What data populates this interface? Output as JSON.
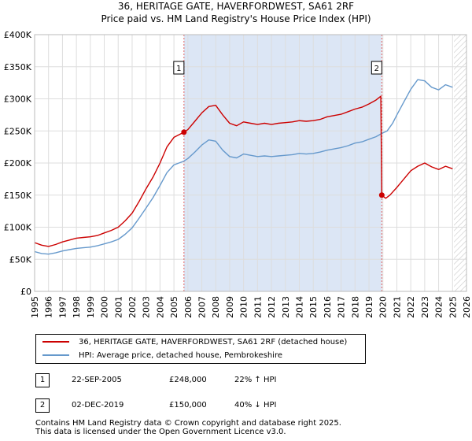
{
  "title_line1": "36, HERITAGE GATE, HAVERFORDWEST, SA61 2RF",
  "title_line2": "Price paid vs. HM Land Registry's House Price Index (HPI)",
  "legend": {
    "property_label": "36, HERITAGE GATE, HAVERFORDWEST, SA61 2RF (detached house)",
    "hpi_label": "HPI: Average price, detached house, Pembrokeshire"
  },
  "transactions": [
    {
      "num": "1",
      "date": "22-SEP-2005",
      "price": "£248,000",
      "hpi_change": "22% ↑ HPI"
    },
    {
      "num": "2",
      "date": "02-DEC-2019",
      "price": "£150,000",
      "hpi_change": "40% ↓ HPI"
    }
  ],
  "footer_line1": "Contains HM Land Registry data © Crown copyright and database right 2025.",
  "footer_line2": "This data is licensed under the Open Government Licence v3.0.",
  "colors": {
    "property": "#cc0000",
    "hpi": "#6699cc",
    "sale_window": "#dce6f5",
    "grid": "#dddddd",
    "marker_line": "#e06060"
  },
  "chart_data": {
    "type": "line",
    "title": "36, HERITAGE GATE, HAVERFORDWEST, SA61 2RF — Price paid vs. HM Land Registry's House Price Index (HPI)",
    "xlabel": "",
    "ylabel": "",
    "xlim": [
      1995,
      2026
    ],
    "ylim": [
      0,
      400000
    ],
    "grid": true,
    "legend_position": "below",
    "x_ticks": [
      1995,
      1996,
      1997,
      1998,
      1999,
      2000,
      2001,
      2002,
      2003,
      2004,
      2005,
      2006,
      2007,
      2008,
      2009,
      2010,
      2011,
      2012,
      2013,
      2014,
      2015,
      2016,
      2017,
      2018,
      2019,
      2020,
      2021,
      2022,
      2023,
      2024,
      2025,
      2026
    ],
    "y_ticks": [
      0,
      50000,
      100000,
      150000,
      200000,
      250000,
      300000,
      350000,
      400000
    ],
    "y_tick_labels": [
      "£0",
      "£50K",
      "£100K",
      "£150K",
      "£200K",
      "£250K",
      "£300K",
      "£350K",
      "£400K"
    ],
    "shaded_periods": [
      [
        2005.72,
        2019.92
      ]
    ],
    "hatched_from": 2025.1,
    "series": [
      {
        "name": "36, HERITAGE GATE, HAVERFORDWEST, SA61 2RF (detached house)",
        "points": [
          [
            1995.0,
            76000
          ],
          [
            1995.5,
            72000
          ],
          [
            1996.0,
            70000
          ],
          [
            1996.5,
            73000
          ],
          [
            1997.0,
            77000
          ],
          [
            1997.5,
            80000
          ],
          [
            1998.0,
            83000
          ],
          [
            1998.5,
            84000
          ],
          [
            1999.0,
            85000
          ],
          [
            1999.5,
            87000
          ],
          [
            2000.0,
            91000
          ],
          [
            2000.5,
            95000
          ],
          [
            2001.0,
            100000
          ],
          [
            2001.5,
            110000
          ],
          [
            2002.0,
            122000
          ],
          [
            2002.5,
            140000
          ],
          [
            2003.0,
            160000
          ],
          [
            2003.5,
            178000
          ],
          [
            2004.0,
            200000
          ],
          [
            2004.5,
            225000
          ],
          [
            2005.0,
            240000
          ],
          [
            2005.72,
            248000
          ],
          [
            2006.0,
            252000
          ],
          [
            2006.5,
            265000
          ],
          [
            2007.0,
            278000
          ],
          [
            2007.5,
            288000
          ],
          [
            2008.0,
            290000
          ],
          [
            2008.5,
            275000
          ],
          [
            2009.0,
            262000
          ],
          [
            2009.5,
            258000
          ],
          [
            2010.0,
            264000
          ],
          [
            2010.5,
            262000
          ],
          [
            2011.0,
            260000
          ],
          [
            2011.5,
            262000
          ],
          [
            2012.0,
            260000
          ],
          [
            2012.5,
            262000
          ],
          [
            2013.0,
            263000
          ],
          [
            2013.5,
            264000
          ],
          [
            2014.0,
            266000
          ],
          [
            2014.5,
            265000
          ],
          [
            2015.0,
            266000
          ],
          [
            2015.5,
            268000
          ],
          [
            2016.0,
            272000
          ],
          [
            2016.5,
            274000
          ],
          [
            2017.0,
            276000
          ],
          [
            2017.5,
            280000
          ],
          [
            2018.0,
            284000
          ],
          [
            2018.5,
            287000
          ],
          [
            2019.0,
            292000
          ],
          [
            2019.5,
            298000
          ],
          [
            2019.85,
            304000
          ],
          [
            2019.92,
            150000
          ],
          [
            2020.2,
            145000
          ],
          [
            2020.5,
            150000
          ],
          [
            2021.0,
            162000
          ],
          [
            2021.5,
            175000
          ],
          [
            2022.0,
            188000
          ],
          [
            2022.5,
            195000
          ],
          [
            2023.0,
            200000
          ],
          [
            2023.5,
            194000
          ],
          [
            2024.0,
            190000
          ],
          [
            2024.5,
            195000
          ],
          [
            2025.0,
            191000
          ]
        ]
      },
      {
        "name": "HPI: Average price, detached house, Pembrokeshire",
        "points": [
          [
            1995.0,
            62000
          ],
          [
            1995.5,
            59000
          ],
          [
            1996.0,
            58000
          ],
          [
            1996.5,
            60000
          ],
          [
            1997.0,
            63000
          ],
          [
            1997.5,
            65000
          ],
          [
            1998.0,
            67000
          ],
          [
            1998.5,
            68000
          ],
          [
            1999.0,
            69000
          ],
          [
            1999.5,
            71000
          ],
          [
            2000.0,
            74000
          ],
          [
            2000.5,
            77000
          ],
          [
            2001.0,
            81000
          ],
          [
            2001.5,
            89000
          ],
          [
            2002.0,
            99000
          ],
          [
            2002.5,
            114000
          ],
          [
            2003.0,
            130000
          ],
          [
            2003.5,
            146000
          ],
          [
            2004.0,
            165000
          ],
          [
            2004.5,
            185000
          ],
          [
            2005.0,
            197000
          ],
          [
            2005.72,
            203000
          ],
          [
            2006.0,
            207000
          ],
          [
            2006.5,
            217000
          ],
          [
            2007.0,
            228000
          ],
          [
            2007.5,
            236000
          ],
          [
            2008.0,
            234000
          ],
          [
            2008.5,
            220000
          ],
          [
            2009.0,
            210000
          ],
          [
            2009.5,
            208000
          ],
          [
            2010.0,
            214000
          ],
          [
            2010.5,
            212000
          ],
          [
            2011.0,
            210000
          ],
          [
            2011.5,
            211000
          ],
          [
            2012.0,
            210000
          ],
          [
            2012.5,
            211000
          ],
          [
            2013.0,
            212000
          ],
          [
            2013.5,
            213000
          ],
          [
            2014.0,
            215000
          ],
          [
            2014.5,
            214000
          ],
          [
            2015.0,
            215000
          ],
          [
            2015.5,
            217000
          ],
          [
            2016.0,
            220000
          ],
          [
            2016.5,
            222000
          ],
          [
            2017.0,
            224000
          ],
          [
            2017.5,
            227000
          ],
          [
            2018.0,
            231000
          ],
          [
            2018.5,
            233000
          ],
          [
            2019.0,
            237000
          ],
          [
            2019.5,
            241000
          ],
          [
            2019.92,
            246000
          ],
          [
            2020.3,
            250000
          ],
          [
            2020.7,
            262000
          ],
          [
            2021.0,
            275000
          ],
          [
            2021.5,
            295000
          ],
          [
            2022.0,
            315000
          ],
          [
            2022.5,
            330000
          ],
          [
            2023.0,
            328000
          ],
          [
            2023.5,
            318000
          ],
          [
            2024.0,
            314000
          ],
          [
            2024.5,
            322000
          ],
          [
            2025.0,
            318000
          ]
        ]
      }
    ],
    "sales": [
      {
        "label": "1",
        "x": 2005.72,
        "y": 248000
      },
      {
        "label": "2",
        "x": 2019.92,
        "y": 150000
      }
    ]
  }
}
